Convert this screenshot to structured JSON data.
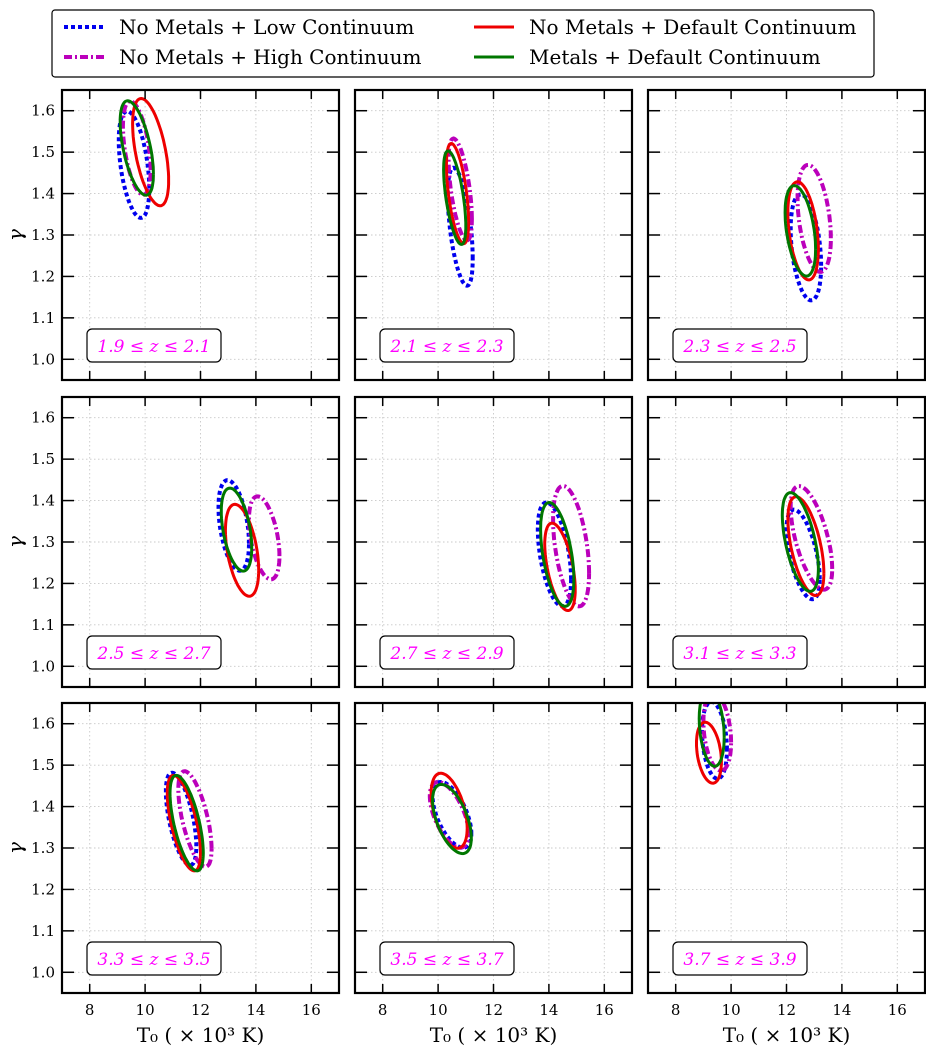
{
  "legend": [
    {
      "name": "No Metals + Low Continuum",
      "color": "#0000ee",
      "dash": "dotted"
    },
    {
      "name": "No Metals + Default Continuum",
      "color": "#ee0000",
      "dash": "solid"
    },
    {
      "name": "No Metals + High Continuum",
      "color": "#bb00bb",
      "dash": "dashdot"
    },
    {
      "name": "Metals + Default Continuum",
      "color": "#007700",
      "dash": "solid"
    }
  ],
  "axes": {
    "xlabel": "T₀ ( × 10³ K)",
    "ylabel": "γ",
    "xlim": [
      7,
      17
    ],
    "ylim": [
      0.95,
      1.65
    ],
    "xticks": [
      8,
      10,
      12,
      14,
      16
    ],
    "yticks": [
      1.0,
      1.1,
      1.2,
      1.3,
      1.4,
      1.5,
      1.6
    ],
    "grid": true
  },
  "chart_data": [
    {
      "type": "contour",
      "annotation": "1.9 ≤ z ≤ 2.1",
      "series": [
        {
          "name": "No Metals + Low Continuum",
          "cx": 9.6,
          "cy": 1.47,
          "rx": 0.55,
          "ry": 0.115,
          "tilt": -0.105
        },
        {
          "name": "No Metals + Default Continuum",
          "cx": 10.2,
          "cy": 1.5,
          "rx": 0.65,
          "ry": 0.11,
          "tilt": -0.105
        },
        {
          "name": "No Metals + High Continuum",
          "cx": 9.7,
          "cy": 1.51,
          "rx": 0.5,
          "ry": 0.1,
          "tilt": -0.105
        },
        {
          "name": "Metals + Default Continuum",
          "cx": 9.7,
          "cy": 1.51,
          "rx": 0.6,
          "ry": 0.095,
          "tilt": -0.105
        }
      ]
    },
    {
      "type": "contour",
      "annotation": "2.1 ≤ z ≤ 2.3",
      "series": [
        {
          "name": "No Metals + Low Continuum",
          "cx": 10.8,
          "cy": 1.32,
          "rx": 0.45,
          "ry": 0.12,
          "tilt": -0.17
        },
        {
          "name": "No Metals + Default Continuum",
          "cx": 10.7,
          "cy": 1.4,
          "rx": 0.4,
          "ry": 0.1,
          "tilt": -0.17
        },
        {
          "name": "No Metals + High Continuum",
          "cx": 10.8,
          "cy": 1.41,
          "rx": 0.42,
          "ry": 0.1,
          "tilt": -0.17
        },
        {
          "name": "Metals + Default Continuum",
          "cx": 10.6,
          "cy": 1.39,
          "rx": 0.4,
          "ry": 0.09,
          "tilt": -0.17
        }
      ]
    },
    {
      "type": "contour",
      "annotation": "2.3 ≤ z ≤ 2.5",
      "series": [
        {
          "name": "No Metals + Low Continuum",
          "cx": 12.7,
          "cy": 1.27,
          "rx": 0.55,
          "ry": 0.12,
          "tilt": -0.08
        },
        {
          "name": "No Metals + Default Continuum",
          "cx": 12.6,
          "cy": 1.31,
          "rx": 0.55,
          "ry": 0.11,
          "tilt": -0.08
        },
        {
          "name": "No Metals + High Continuum",
          "cx": 13.0,
          "cy": 1.34,
          "rx": 0.6,
          "ry": 0.12,
          "tilt": -0.08
        },
        {
          "name": "Metals + Default Continuum",
          "cx": 12.5,
          "cy": 1.31,
          "rx": 0.55,
          "ry": 0.1,
          "tilt": -0.08
        }
      ]
    },
    {
      "type": "contour",
      "annotation": "2.5 ≤ z ≤ 2.7",
      "series": [
        {
          "name": "No Metals + Low Continuum",
          "cx": 13.2,
          "cy": 1.34,
          "rx": 0.55,
          "ry": 0.1,
          "tilt": -0.08
        },
        {
          "name": "No Metals + Default Continuum",
          "cx": 13.5,
          "cy": 1.28,
          "rx": 0.6,
          "ry": 0.1,
          "tilt": -0.08
        },
        {
          "name": "No Metals + High Continuum",
          "cx": 14.3,
          "cy": 1.31,
          "rx": 0.55,
          "ry": 0.09,
          "tilt": -0.08
        },
        {
          "name": "Metals + Default Continuum",
          "cx": 13.3,
          "cy": 1.33,
          "rx": 0.55,
          "ry": 0.09,
          "tilt": -0.08
        }
      ]
    },
    {
      "type": "contour",
      "annotation": "2.7 ≤ z ≤ 2.9",
      "series": [
        {
          "name": "No Metals + Low Continuum",
          "cx": 14.2,
          "cy": 1.27,
          "rx": 0.6,
          "ry": 0.11,
          "tilt": -0.1
        },
        {
          "name": "No Metals + Default Continuum",
          "cx": 14.4,
          "cy": 1.24,
          "rx": 0.55,
          "ry": 0.09,
          "tilt": -0.1
        },
        {
          "name": "No Metals + High Continuum",
          "cx": 14.8,
          "cy": 1.29,
          "rx": 0.65,
          "ry": 0.13,
          "tilt": -0.1
        },
        {
          "name": "Metals + Default Continuum",
          "cx": 14.3,
          "cy": 1.27,
          "rx": 0.6,
          "ry": 0.11,
          "tilt": -0.1
        }
      ]
    },
    {
      "type": "contour",
      "annotation": "3.1 ≤ z ≤ 3.3",
      "series": [
        {
          "name": "No Metals + Low Continuum",
          "cx": 12.6,
          "cy": 1.27,
          "rx": 0.6,
          "ry": 0.09,
          "tilt": -0.1
        },
        {
          "name": "No Metals + Default Continuum",
          "cx": 12.7,
          "cy": 1.29,
          "rx": 0.65,
          "ry": 0.1,
          "tilt": -0.1
        },
        {
          "name": "No Metals + High Continuum",
          "cx": 12.9,
          "cy": 1.31,
          "rx": 0.75,
          "ry": 0.1,
          "tilt": -0.1
        },
        {
          "name": "Metals + Default Continuum",
          "cx": 12.5,
          "cy": 1.3,
          "rx": 0.65,
          "ry": 0.1,
          "tilt": -0.1
        }
      ]
    },
    {
      "type": "contour",
      "annotation": "3.3 ≤ z ≤ 3.5",
      "series": [
        {
          "name": "No Metals + Low Continuum",
          "cx": 11.3,
          "cy": 1.37,
          "rx": 0.55,
          "ry": 0.09,
          "tilt": -0.12
        },
        {
          "name": "No Metals + Default Continuum",
          "cx": 11.4,
          "cy": 1.36,
          "rx": 0.6,
          "ry": 0.09,
          "tilt": -0.12
        },
        {
          "name": "No Metals + High Continuum",
          "cx": 11.8,
          "cy": 1.37,
          "rx": 0.6,
          "ry": 0.09,
          "tilt": -0.12
        },
        {
          "name": "Metals + Default Continuum",
          "cx": 11.5,
          "cy": 1.36,
          "rx": 0.6,
          "ry": 0.09,
          "tilt": -0.12
        }
      ]
    },
    {
      "type": "contour",
      "annotation": "3.5 ≤ z ≤ 3.7",
      "series": [
        {
          "name": "No Metals + Low Continuum",
          "cx": 10.5,
          "cy": 1.38,
          "rx": 0.7,
          "ry": 0.065,
          "tilt": -0.065
        },
        {
          "name": "No Metals + Default Continuum",
          "cx": 10.4,
          "cy": 1.39,
          "rx": 0.65,
          "ry": 0.08,
          "tilt": -0.065
        },
        {
          "name": "No Metals + High Continuum",
          "cx": 10.4,
          "cy": 1.38,
          "rx": 0.7,
          "ry": 0.065,
          "tilt": -0.065
        },
        {
          "name": "Metals + Default Continuum",
          "cx": 10.5,
          "cy": 1.37,
          "rx": 0.7,
          "ry": 0.07,
          "tilt": -0.065
        }
      ]
    },
    {
      "type": "contour",
      "annotation": "3.7 ≤ z ≤ 3.9",
      "series": [
        {
          "name": "No Metals + Low Continuum",
          "cx": 9.4,
          "cy": 1.56,
          "rx": 0.45,
          "ry": 0.09,
          "tilt": -0.05
        },
        {
          "name": "No Metals + Default Continuum",
          "cx": 9.2,
          "cy": 1.53,
          "rx": 0.45,
          "ry": 0.07,
          "tilt": -0.05
        },
        {
          "name": "No Metals + High Continuum",
          "cx": 9.5,
          "cy": 1.58,
          "rx": 0.5,
          "ry": 0.09,
          "tilt": -0.05
        },
        {
          "name": "Metals + Default Continuum",
          "cx": 9.3,
          "cy": 1.59,
          "rx": 0.45,
          "ry": 0.09,
          "tilt": -0.05
        }
      ]
    }
  ]
}
